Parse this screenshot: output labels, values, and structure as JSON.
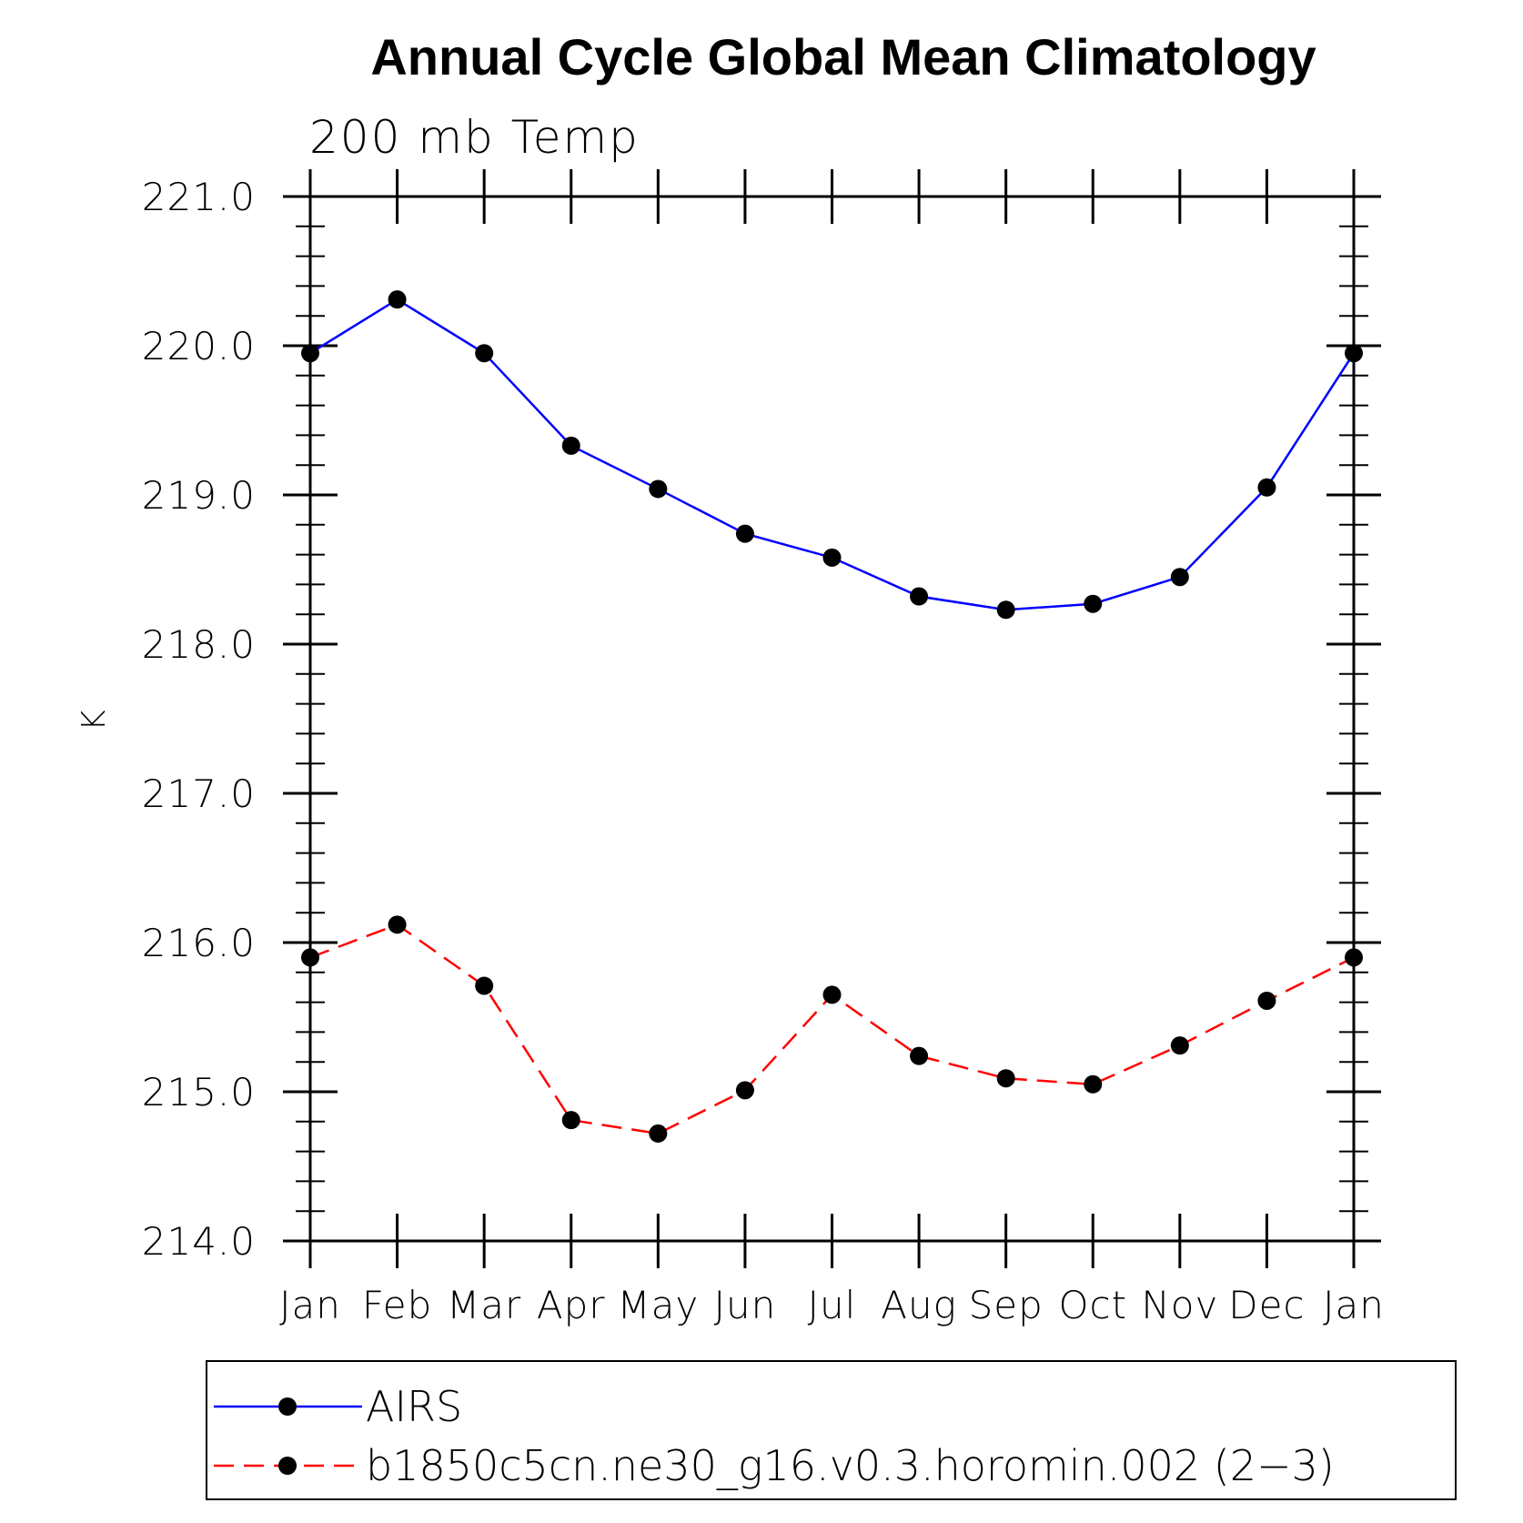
{
  "chart_data": {
    "type": "line",
    "title": "Annual Cycle Global Mean Climatology",
    "subtitle": "200 mb Temp",
    "xlabel": "",
    "ylabel": "K",
    "categories": [
      "Jan",
      "Feb",
      "Mar",
      "Apr",
      "May",
      "Jun",
      "Jul",
      "Aug",
      "Sep",
      "Oct",
      "Nov",
      "Dec",
      "Jan"
    ],
    "ylim": [
      214.0,
      221.0
    ],
    "yticks": [
      "214.0",
      "215.0",
      "216.0",
      "217.0",
      "218.0",
      "219.0",
      "220.0",
      "221.0"
    ],
    "yminor_step": 0.2,
    "grid": false,
    "legend_position": "bottom",
    "series": [
      {
        "name": "AIRS",
        "color": "#0000ff",
        "dash": "solid",
        "marker": "dot",
        "values": [
          219.95,
          220.31,
          219.95,
          219.33,
          219.04,
          218.74,
          218.58,
          218.32,
          218.23,
          218.27,
          218.45,
          219.05,
          219.95
        ]
      },
      {
        "name": "b1850c5cn.ne30_g16.v0.3.horomin.002 (2−3)",
        "color": "#ff0000",
        "dash": "dashed",
        "marker": "dot",
        "values": [
          215.9,
          216.12,
          215.71,
          214.81,
          214.72,
          215.01,
          215.65,
          215.24,
          215.09,
          215.05,
          215.31,
          215.61,
          215.9
        ]
      }
    ]
  }
}
